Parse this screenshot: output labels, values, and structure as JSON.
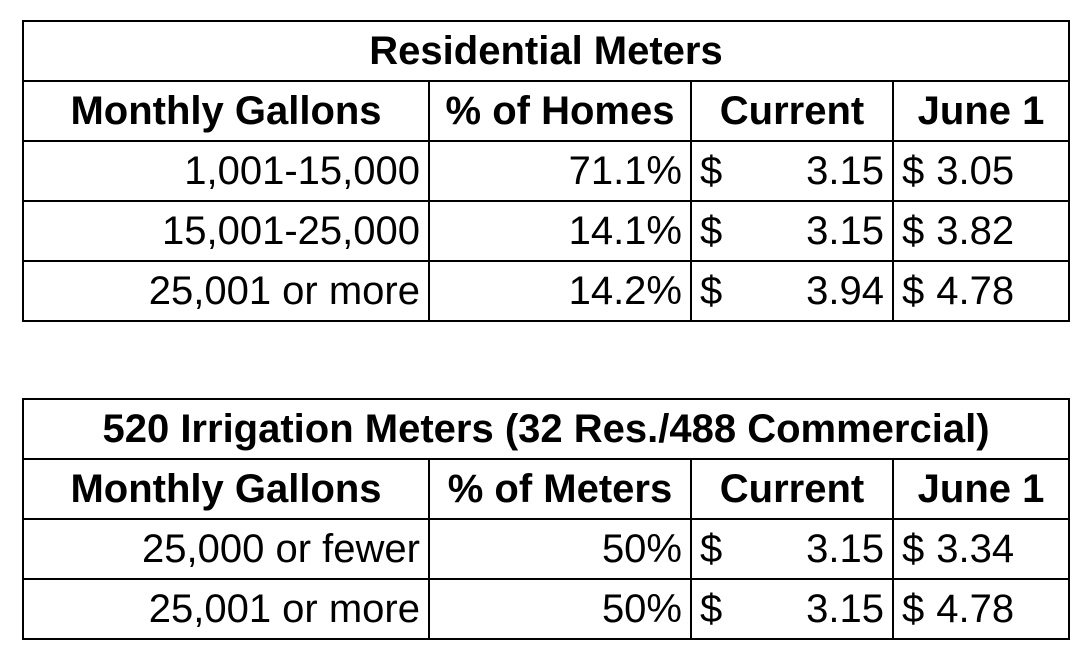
{
  "residential": {
    "title": "Residential Meters",
    "headers": [
      "Monthly Gallons",
      "% of Homes",
      "Current",
      "June 1"
    ],
    "rows": [
      {
        "gallons": "1,001-15,000",
        "pct": "71.1%",
        "current": "3.15",
        "june1": "3.05"
      },
      {
        "gallons": "15,001-25,000",
        "pct": "14.1%",
        "current": "3.15",
        "june1": "3.82"
      },
      {
        "gallons": "25,001 or more",
        "pct": "14.2%",
        "current": "3.94",
        "june1": "4.78"
      }
    ]
  },
  "irrigation": {
    "title": "520 Irrigation Meters (32 Res./488 Commercial)",
    "headers": [
      "Monthly Gallons",
      "% of Meters",
      "Current",
      "June 1"
    ],
    "rows": [
      {
        "gallons": "25,000 or fewer",
        "pct": "50%",
        "current": "3.15",
        "june1": "3.34"
      },
      {
        "gallons": "25,001 or more",
        "pct": "50%",
        "current": "3.15",
        "june1": "4.78"
      }
    ]
  },
  "currency_symbol": "$"
}
